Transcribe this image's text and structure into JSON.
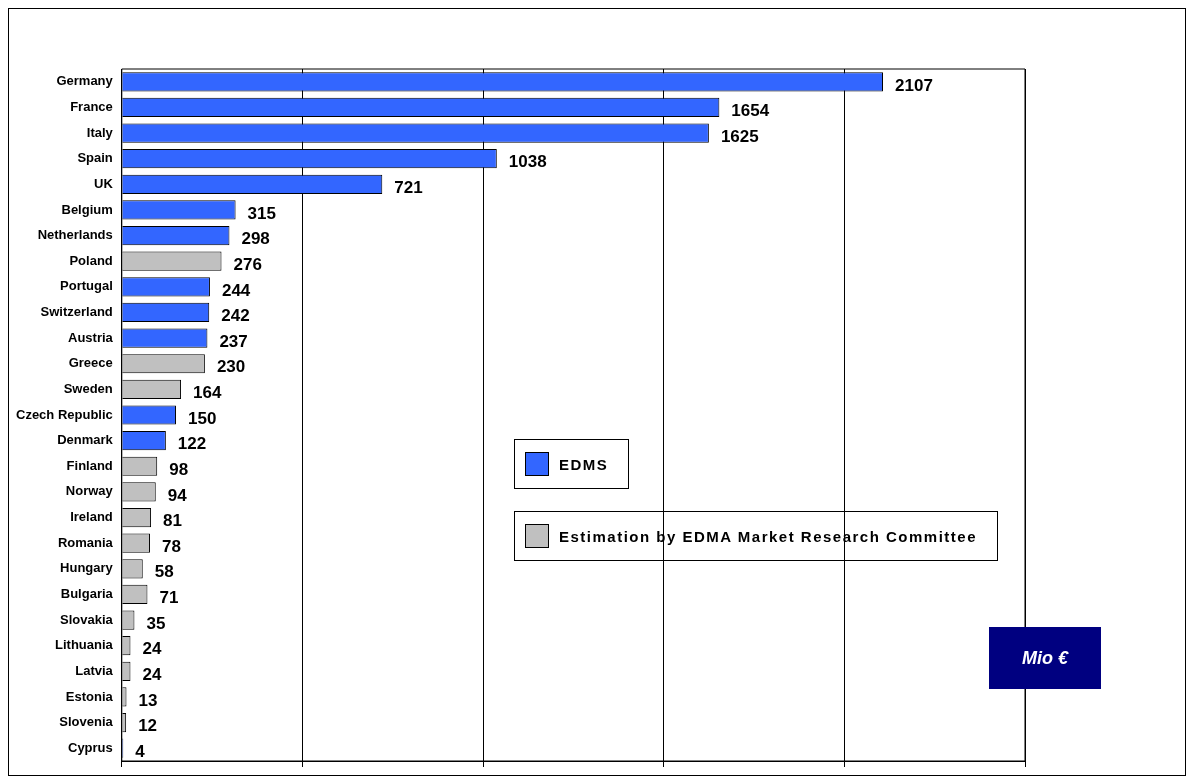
{
  "chart_data": {
    "type": "bar",
    "orientation": "horizontal",
    "stacked": true,
    "categories": [
      "Germany",
      "France",
      "Italy",
      "Spain",
      "UK",
      "Belgium",
      "Netherlands",
      "Poland",
      "Portugal",
      "Switzerland",
      "Austria",
      "Greece",
      "Sweden",
      "Czech Republic",
      "Denmark",
      "Finland",
      "Norway",
      "Ireland",
      "Romania",
      "Hungary",
      "Bulgaria",
      "Slovakia",
      "Lithuania",
      "Latvia",
      "Estonia",
      "Slovenia",
      "Cyprus"
    ],
    "series": [
      {
        "name": "EDMS",
        "color": "#3366ff",
        "values": [
          2107,
          1654,
          1625,
          1038,
          721,
          315,
          298,
          null,
          244,
          242,
          237,
          null,
          null,
          150,
          122,
          null,
          null,
          null,
          null,
          null,
          null,
          null,
          null,
          null,
          null,
          null,
          4
        ]
      },
      {
        "name": "Estimation by EDMA Market Research Committee",
        "color": "#c0c0c0",
        "values": [
          null,
          null,
          null,
          null,
          null,
          null,
          null,
          276,
          null,
          null,
          null,
          230,
          164,
          null,
          null,
          98,
          94,
          81,
          78,
          58,
          71,
          35,
          24,
          24,
          13,
          12,
          null
        ]
      }
    ],
    "xlim": [
      0,
      2500
    ],
    "xticks": [
      {
        "value": 0,
        "label": null
      },
      {
        "value": 500,
        "label": null
      },
      {
        "value": 1000,
        "label": null
      },
      {
        "value": 1500,
        "label": null
      },
      {
        "value": 2000,
        "label": null
      },
      {
        "value": 2500,
        "label": null
      }
    ],
    "tick_labels": "y",
    "grid": "x",
    "legend": "right",
    "data_labels": true,
    "annotations": [
      "Mio €"
    ]
  }
}
